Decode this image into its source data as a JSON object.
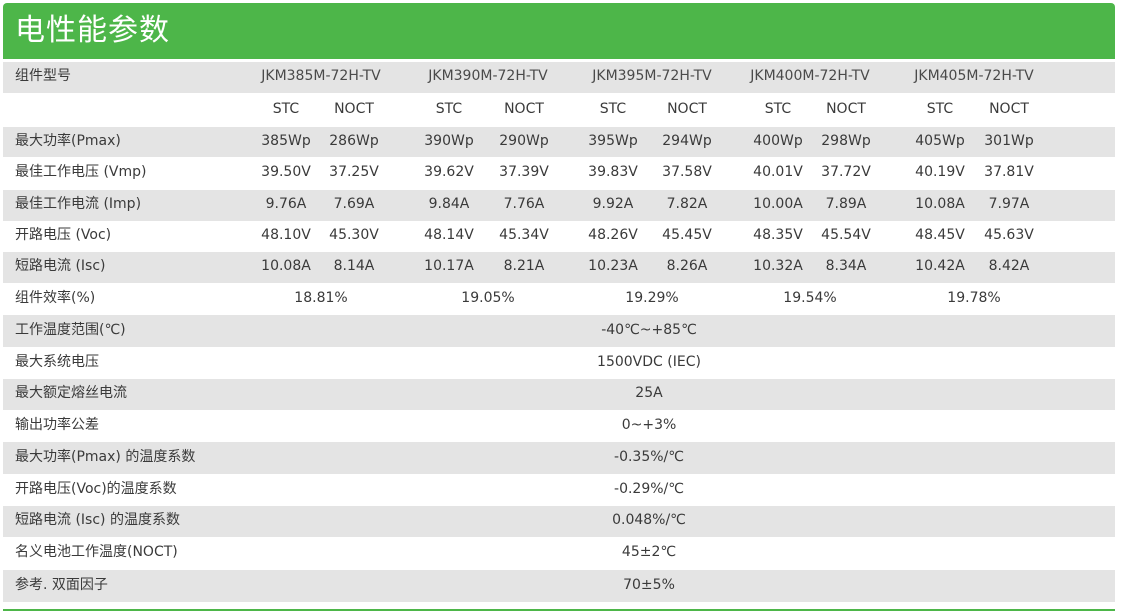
{
  "title": "电性能参数",
  "colors": {
    "header_bg": "#4db649",
    "stripe_bg": "#e4e4e4"
  },
  "model_label": "组件型号",
  "models": [
    "JKM385M-72H-TV",
    "JKM390M-72H-TV",
    "JKM395M-72H-TV",
    "JKM400M-72H-TV",
    "JKM405M-72H-TV"
  ],
  "conditions": [
    "STC",
    "NOCT"
  ],
  "per_model_rows": [
    {
      "label": "最大功率(Pmax)",
      "values": [
        [
          "385Wp",
          "286Wp"
        ],
        [
          "390Wp",
          "290Wp"
        ],
        [
          "395Wp",
          "294Wp"
        ],
        [
          "400Wp",
          "298Wp"
        ],
        [
          "405Wp",
          "301Wp"
        ]
      ]
    },
    {
      "label": "最佳工作电压 (Vmp)",
      "values": [
        [
          "39.50V",
          "37.25V"
        ],
        [
          "39.62V",
          "37.39V"
        ],
        [
          "39.83V",
          "37.58V"
        ],
        [
          "40.01V",
          "37.72V"
        ],
        [
          "40.19V",
          "37.81V"
        ]
      ]
    },
    {
      "label": "最佳工作电流 (Imp)",
      "values": [
        [
          "9.76A",
          "7.69A"
        ],
        [
          "9.84A",
          "7.76A"
        ],
        [
          "9.92A",
          "7.82A"
        ],
        [
          "10.00A",
          "7.89A"
        ],
        [
          "10.08A",
          "7.97A"
        ]
      ]
    },
    {
      "label": "开路电压 (Voc)",
      "values": [
        [
          "48.10V",
          "45.30V"
        ],
        [
          "48.14V",
          "45.34V"
        ],
        [
          "48.26V",
          "45.45V"
        ],
        [
          "48.35V",
          "45.54V"
        ],
        [
          "48.45V",
          "45.63V"
        ]
      ]
    },
    {
      "label": "短路电流 (Isc)",
      "values": [
        [
          "10.08A",
          "8.14A"
        ],
        [
          "10.17A",
          "8.21A"
        ],
        [
          "10.23A",
          "8.26A"
        ],
        [
          "10.32A",
          "8.34A"
        ],
        [
          "10.42A",
          "8.42A"
        ]
      ]
    }
  ],
  "efficiency_row": {
    "label": "组件效率(%)",
    "values": [
      "18.81%",
      "19.05%",
      "19.29%",
      "19.54%",
      "19.78%"
    ]
  },
  "shared_rows": [
    {
      "label": "工作温度范围(℃)",
      "value": "-40℃~+85℃"
    },
    {
      "label": "最大系统电压",
      "value": "1500VDC (IEC)"
    },
    {
      "label": "最大额定熔丝电流",
      "value": "25A"
    },
    {
      "label": "输出功率公差",
      "value": "0~+3%"
    },
    {
      "label": "最大功率(Pmax) 的温度系数",
      "value": "-0.35%/℃"
    },
    {
      "label": "开路电压(Voc)的温度系数",
      "value": "-0.29%/℃"
    },
    {
      "label": "短路电流 (Isc) 的温度系数",
      "value": "0.048%/℃"
    },
    {
      "label": "名义电池工作温度(NOCT)",
      "value": "45±2℃"
    },
    {
      "label": "参考. 双面因子",
      "value": "70±5%"
    }
  ]
}
